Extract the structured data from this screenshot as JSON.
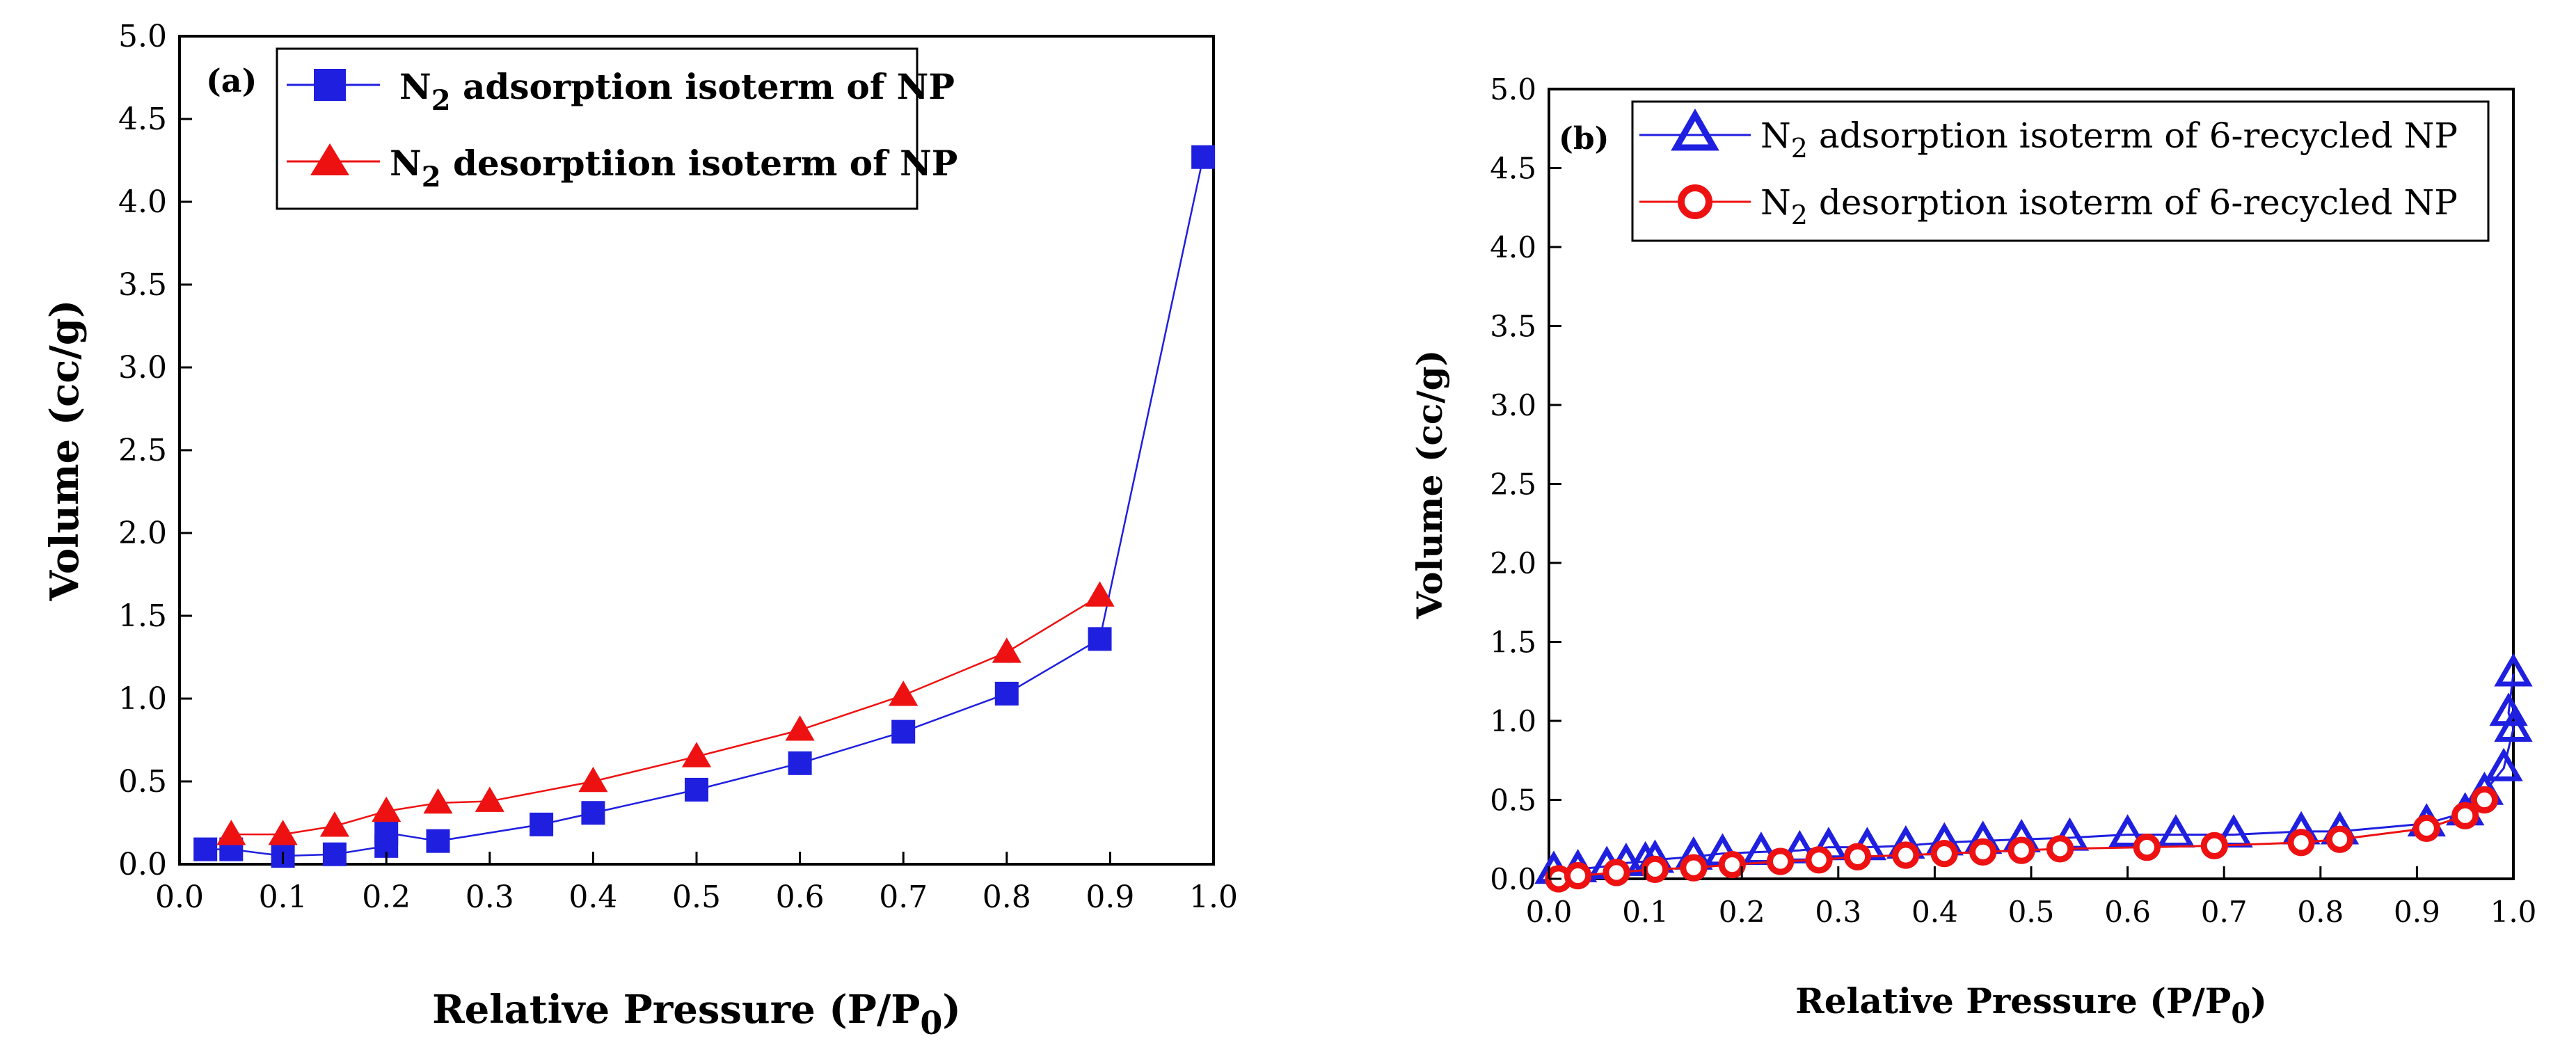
{
  "chart_data": [
    {
      "type": "scatter",
      "panel_label": "(a)",
      "xlabel": "Relative Pressure (P/P0)",
      "xlabel_main": "Relative Pressure (P/P",
      "xlabel_sub": "0",
      "xlabel_close": ")",
      "ylabel": "Volume (cc/g)",
      "xlim": [
        0.0,
        1.0
      ],
      "ylim": [
        0.0,
        5.0
      ],
      "xticks": [
        "0.0",
        "0.1",
        "0.2",
        "0.3",
        "0.4",
        "0.5",
        "0.6",
        "0.7",
        "0.8",
        "0.9",
        "1.0"
      ],
      "yticks": [
        "0.0",
        "0.5",
        "1.0",
        "1.5",
        "2.0",
        "2.5",
        "3.0",
        "3.5",
        "4.0",
        "4.5",
        "5.0"
      ],
      "series": [
        {
          "name": "N2 adsorption isoterm of NP",
          "legend_prefix": "N",
          "legend_sub": "2",
          "legend_rest": " adsorption isoterm of NP",
          "color": "#1f1fe0",
          "marker": "square",
          "x": [
            0.025,
            0.05,
            0.1,
            0.15,
            0.2,
            0.2,
            0.25,
            0.35,
            0.4,
            0.5,
            0.6,
            0.7,
            0.8,
            0.89,
            0.99
          ],
          "y": [
            0.09,
            0.09,
            0.05,
            0.06,
            0.11,
            0.19,
            0.14,
            0.24,
            0.31,
            0.45,
            0.61,
            0.8,
            1.03,
            1.36,
            4.27
          ]
        },
        {
          "name": "N2 desorptiion isoterm of NP",
          "legend_prefix": "N",
          "legend_sub": "2",
          "legend_rest": " desorptiion isoterm of NP",
          "color": "#ee1111",
          "marker": "triangle",
          "x": [
            0.05,
            0.1,
            0.15,
            0.2,
            0.25,
            0.3,
            0.4,
            0.5,
            0.6,
            0.7,
            0.8,
            0.89
          ],
          "y": [
            0.18,
            0.18,
            0.23,
            0.32,
            0.37,
            0.38,
            0.5,
            0.65,
            0.81,
            1.02,
            1.28,
            1.62
          ]
        }
      ]
    },
    {
      "type": "scatter",
      "panel_label": "(b)",
      "xlabel": "Relative Pressure (P/P0)",
      "xlabel_main": "Relative Pressure (P/P",
      "xlabel_sub": "0",
      "xlabel_close": ")",
      "ylabel": "Volume (cc/g)",
      "xlim": [
        0.0,
        1.0
      ],
      "ylim": [
        0.0,
        5.0
      ],
      "xticks": [
        "0.0",
        "0.1",
        "0.2",
        "0.3",
        "0.4",
        "0.5",
        "0.6",
        "0.7",
        "0.8",
        "0.9",
        "1.0"
      ],
      "yticks": [
        "0.0",
        "0.5",
        "1.0",
        "1.5",
        "2.0",
        "2.5",
        "3.0",
        "3.5",
        "4.0",
        "4.5",
        "5.0"
      ],
      "series": [
        {
          "name": "N2 adsorption isoterm of 6-recycled NP",
          "legend_prefix": "N",
          "legend_sub": "2",
          "legend_rest": " adsorption isoterm of  6-recycled NP",
          "color": "#1f1fe0",
          "marker": "open-triangle",
          "x": [
            0.005,
            0.03,
            0.06,
            0.08,
            0.1,
            0.11,
            0.15,
            0.18,
            0.22,
            0.26,
            0.29,
            0.33,
            0.37,
            0.41,
            0.45,
            0.49,
            0.54,
            0.6,
            0.65,
            0.71,
            0.78,
            0.82,
            0.91,
            0.95,
            0.97,
            0.99,
            1.0,
            0.995,
            1.0
          ],
          "y": [
            0.05,
            0.06,
            0.08,
            0.1,
            0.11,
            0.12,
            0.14,
            0.16,
            0.17,
            0.18,
            0.2,
            0.2,
            0.21,
            0.23,
            0.24,
            0.25,
            0.26,
            0.28,
            0.28,
            0.28,
            0.3,
            0.3,
            0.35,
            0.42,
            0.55,
            0.7,
            0.95,
            1.05,
            1.3
          ]
        },
        {
          "name": "N2 desorption isoterm of 6-recycled NP",
          "legend_prefix": "N",
          "legend_sub": "2",
          "legend_rest": " desorption isoterm of 6-recycled NP",
          "color": "#ee1111",
          "marker": "open-circle",
          "x": [
            0.01,
            0.03,
            0.07,
            0.11,
            0.15,
            0.19,
            0.24,
            0.28,
            0.32,
            0.37,
            0.41,
            0.45,
            0.49,
            0.53,
            0.62,
            0.69,
            0.78,
            0.82,
            0.91,
            0.95,
            0.97
          ],
          "y": [
            0.0,
            0.02,
            0.04,
            0.06,
            0.07,
            0.09,
            0.11,
            0.12,
            0.14,
            0.15,
            0.16,
            0.17,
            0.18,
            0.19,
            0.2,
            0.21,
            0.23,
            0.25,
            0.32,
            0.4,
            0.5
          ]
        }
      ]
    }
  ]
}
